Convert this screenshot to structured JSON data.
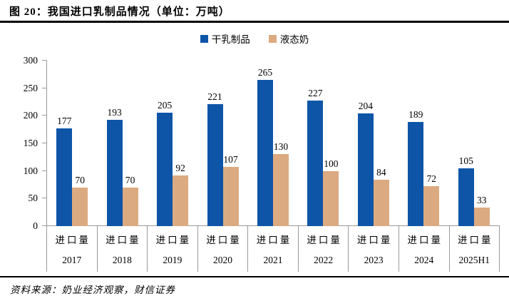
{
  "header": {
    "title": "图 20：我国进口乳制品情况（单位：万吨）"
  },
  "footer": {
    "source": "资料来源：奶业经济观察，财信证券"
  },
  "colors": {
    "axis": "#9a9a9a",
    "series1": "#0E55A8",
    "series2": "#DCAA80"
  },
  "chart_data": {
    "type": "bar",
    "title": "我国进口乳制品情况",
    "unit": "万吨",
    "categories": [
      "2017",
      "2018",
      "2019",
      "2020",
      "2021",
      "2022",
      "2023",
      "2024",
      "2025H1"
    ],
    "category_row_label": "进口量",
    "series": [
      {
        "name": "干乳制品",
        "color": "#0E55A8",
        "values": [
          177,
          193,
          205,
          221,
          265,
          227,
          204,
          189,
          105
        ]
      },
      {
        "name": "液态奶",
        "color": "#DCAA80",
        "values": [
          70,
          70,
          92,
          107,
          130,
          100,
          84,
          72,
          33
        ]
      }
    ],
    "ylim": [
      0,
      300
    ],
    "yticks": [
      0,
      50,
      100,
      150,
      200,
      250,
      300
    ],
    "legend_position": "top",
    "grid": false
  }
}
